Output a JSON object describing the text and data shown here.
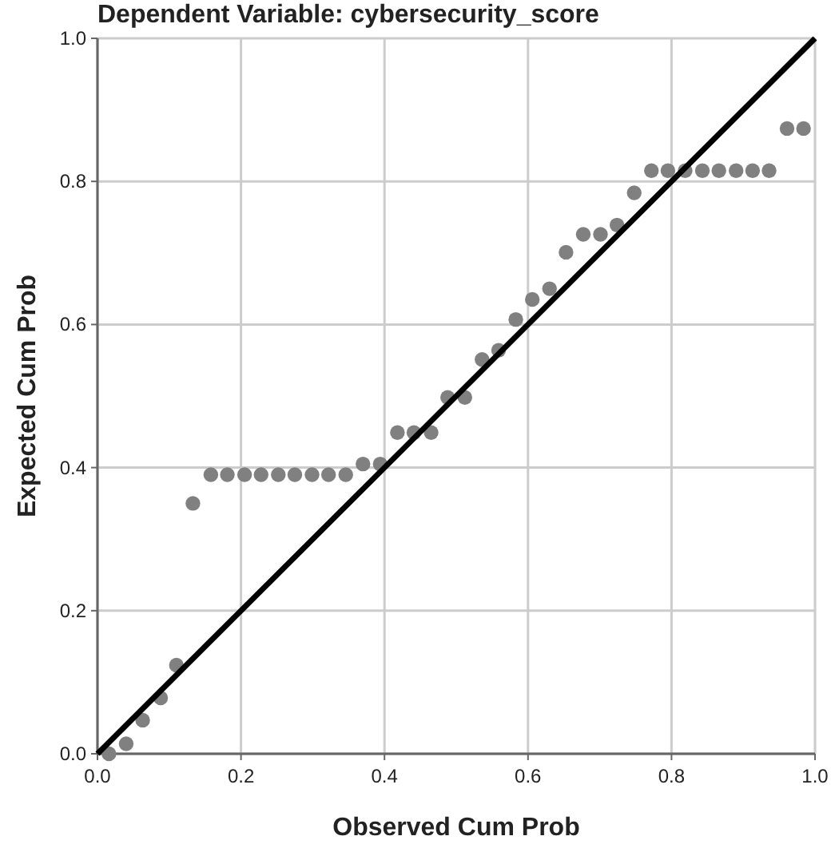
{
  "chart_data": {
    "type": "scatter",
    "title": "Dependent Variable: cybersecurity_score",
    "xlabel": "Observed Cum Prob",
    "ylabel": "Expected Cum Prob",
    "xlim": [
      0,
      1
    ],
    "ylim": [
      0,
      1
    ],
    "xticks": [
      {
        "value": 0,
        "label": "0.0"
      },
      {
        "value": 0.2,
        "label": "0.2"
      },
      {
        "value": 0.4,
        "label": "0.4"
      },
      {
        "value": 0.6,
        "label": "0.6"
      },
      {
        "value": 0.8,
        "label": "0.8"
      },
      {
        "value": 1,
        "label": "1.0"
      }
    ],
    "yticks": [
      {
        "value": 0,
        "label": "0.0"
      },
      {
        "value": 0.2,
        "label": "0.2"
      },
      {
        "value": 0.4,
        "label": "0.4"
      },
      {
        "value": 0.6,
        "label": "0.6"
      },
      {
        "value": 0.8,
        "label": "0.8"
      },
      {
        "value": 1,
        "label": "1.0"
      }
    ],
    "grid": true,
    "series": [
      {
        "marker": "circle",
        "color": "#808080",
        "x": [
          0.016,
          0.04,
          0.063,
          0.088,
          0.11,
          0.133,
          0.158,
          0.181,
          0.205,
          0.228,
          0.252,
          0.275,
          0.299,
          0.322,
          0.346,
          0.37,
          0.394,
          0.418,
          0.441,
          0.465,
          0.488,
          0.512,
          0.536,
          0.559,
          0.583,
          0.606,
          0.63,
          0.653,
          0.677,
          0.701,
          0.724,
          0.748,
          0.772,
          0.795,
          0.819,
          0.843,
          0.866,
          0.89,
          0.913,
          0.936,
          0.961,
          0.984
        ],
        "values": [
          0.0,
          0.014,
          0.047,
          0.078,
          0.124,
          0.35,
          0.39,
          0.39,
          0.39,
          0.39,
          0.39,
          0.39,
          0.39,
          0.39,
          0.39,
          0.405,
          0.405,
          0.449,
          0.449,
          0.449,
          0.498,
          0.498,
          0.551,
          0.564,
          0.607,
          0.635,
          0.65,
          0.701,
          0.726,
          0.726,
          0.739,
          0.784,
          0.815,
          0.815,
          0.815,
          0.815,
          0.815,
          0.815,
          0.815,
          0.815,
          0.874,
          0.874
        ]
      },
      {
        "type": "line",
        "color": "#000000",
        "x": [
          0,
          1
        ],
        "values": [
          0,
          1
        ]
      }
    ]
  }
}
